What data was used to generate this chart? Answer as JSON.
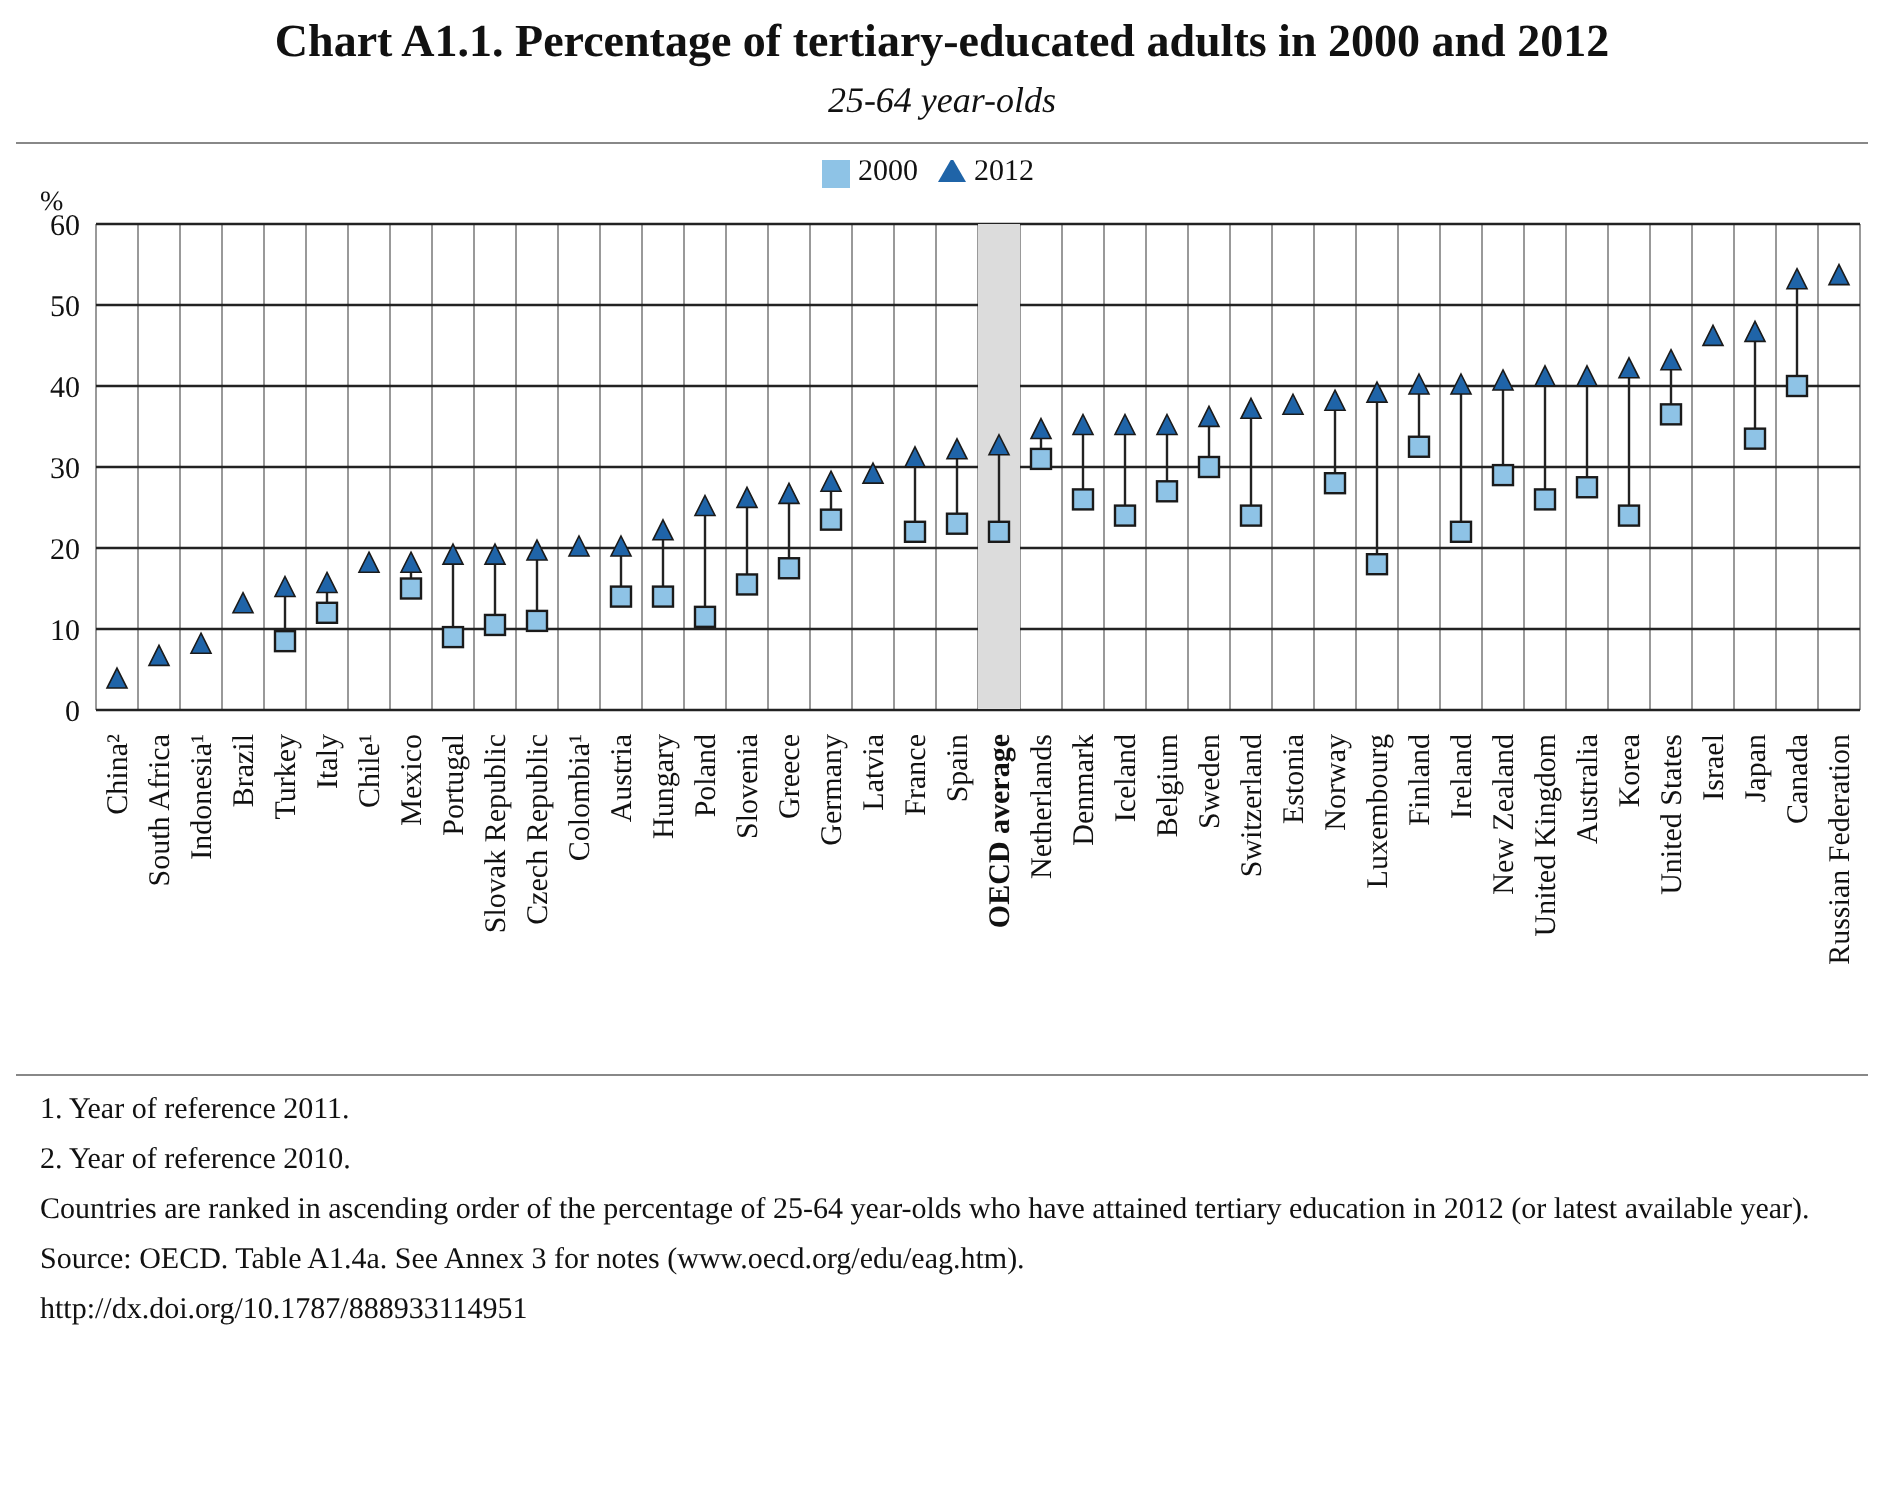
{
  "chart_data": {
    "type": "scatter",
    "title": "Chart A1.1. Percentage of tertiary-educated adults in 2000 and 2012",
    "subtitle": "25-64 year-olds",
    "ylabel": "%",
    "categories": [
      "China²",
      "South Africa",
      "Indonesia¹",
      "Brazil",
      "Turkey",
      "Italy",
      "Chile¹",
      "Mexico",
      "Portugal",
      "Slovak Republic",
      "Czech Republic",
      "Colombia¹",
      "Austria",
      "Hungary",
      "Poland",
      "Slovenia",
      "Greece",
      "Germany",
      "Latvia",
      "France",
      "Spain",
      "OECD average",
      "Netherlands",
      "Denmark",
      "Iceland",
      "Belgium",
      "Sweden",
      "Switzerland",
      "Estonia",
      "Norway",
      "Luxembourg",
      "Finland",
      "Ireland",
      "New Zealand",
      "United Kingdom",
      "Australia",
      "Korea",
      "United States",
      "Israel",
      "Japan",
      "Canada",
      "Russian Federation"
    ],
    "series": [
      {
        "name": "2000",
        "color": "#8ec3e6",
        "marker": "square",
        "values": [
          null,
          null,
          null,
          null,
          8.5,
          12,
          null,
          15,
          9,
          10.5,
          11,
          null,
          14,
          14,
          11.5,
          15.5,
          17.5,
          23.5,
          null,
          22,
          23,
          22,
          31,
          26,
          24,
          27,
          30,
          24,
          null,
          28,
          18,
          32.5,
          22,
          29,
          26,
          27.5,
          24,
          36.5,
          null,
          33.5,
          40,
          null
        ]
      },
      {
        "name": "2012",
        "color": "#1f64a8",
        "marker": "triangle",
        "values": [
          3.7,
          6.5,
          8,
          13,
          15,
          15.5,
          18,
          18,
          19,
          19,
          19.5,
          20,
          20,
          22,
          25,
          26,
          26.5,
          28,
          29,
          31,
          32,
          32.5,
          34.5,
          35,
          35,
          35,
          36,
          37,
          37.5,
          38,
          39,
          40,
          40,
          40.5,
          41,
          41,
          42,
          43,
          46,
          46.5,
          53,
          53.5
        ]
      }
    ],
    "ylim": [
      0,
      60
    ],
    "yticks": [
      0,
      10,
      20,
      30,
      40,
      50,
      60
    ],
    "grid": true,
    "legend": "top",
    "bands": [
      {
        "axis": "x",
        "from": "OECD average",
        "to": "OECD average",
        "color": "#dcdcdc"
      }
    ],
    "annotations": [
      "1. Year of reference 2011.",
      "2. Year of reference 2010.",
      "Countries are ranked in ascending order of the percentage of 25-64 year-olds who have attained tertiary education in 2012 (or latest available year).",
      "Source: OECD. Table A1.4a. See Annex 3 for notes (www.oecd.org/edu/eag.htm).",
      "http://dx.doi.org/10.1787/888933114951"
    ]
  }
}
